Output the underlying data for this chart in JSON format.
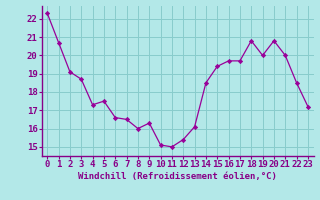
{
  "x": [
    0,
    1,
    2,
    3,
    4,
    5,
    6,
    7,
    8,
    9,
    10,
    11,
    12,
    13,
    14,
    15,
    16,
    17,
    18,
    19,
    20,
    21,
    22,
    23
  ],
  "y": [
    22.3,
    20.7,
    19.1,
    18.7,
    17.3,
    17.5,
    16.6,
    16.5,
    16.0,
    16.3,
    15.1,
    15.0,
    15.4,
    16.1,
    18.5,
    19.4,
    19.7,
    19.7,
    20.8,
    20.0,
    20.8,
    20.0,
    18.5,
    17.2
  ],
  "line_color": "#990099",
  "marker_color": "#990099",
  "bg_color": "#b3e8e8",
  "grid_color": "#88cccc",
  "xlabel": "Windchill (Refroidissement éolien,°C)",
  "ylim": [
    14.5,
    22.7
  ],
  "xlim": [
    -0.5,
    23.5
  ],
  "yticks": [
    15,
    16,
    17,
    18,
    19,
    20,
    21,
    22
  ],
  "xticks": [
    0,
    1,
    2,
    3,
    4,
    5,
    6,
    7,
    8,
    9,
    10,
    11,
    12,
    13,
    14,
    15,
    16,
    17,
    18,
    19,
    20,
    21,
    22,
    23
  ],
  "xtick_labels": [
    "0",
    "1",
    "2",
    "3",
    "4",
    "5",
    "6",
    "7",
    "8",
    "9",
    "10",
    "11",
    "12",
    "13",
    "14",
    "15",
    "16",
    "17",
    "18",
    "19",
    "20",
    "21",
    "22",
    "23"
  ],
  "font_color": "#880088",
  "fig_bg": "#b3e8e8",
  "xlabel_fontsize": 6.5,
  "tick_fontsize": 6.5,
  "linewidth": 0.9,
  "markersize": 2.2
}
